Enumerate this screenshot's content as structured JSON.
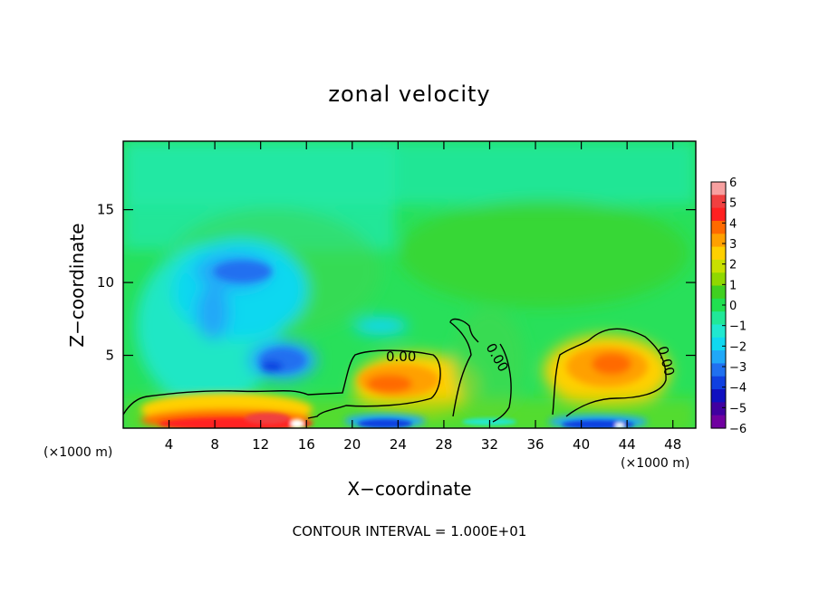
{
  "chart_data": {
    "type": "heatmap",
    "title": "zonal velocity",
    "xlabel": "X−coordinate",
    "ylabel": "Z−coordinate",
    "x_units": "(×1000 m)",
    "x_ticks": [
      4,
      8,
      12,
      16,
      20,
      24,
      28,
      32,
      36,
      40,
      44,
      48
    ],
    "y_ticks": [
      5,
      10,
      15
    ],
    "xlim": [
      0,
      50
    ],
    "ylim": [
      0,
      19.7
    ],
    "contour_interval_text": "CONTOUR INTERVAL = 1.000E+01",
    "contour_labels": [
      "0.00",
      "0.00",
      "0.00"
    ],
    "colorbar": {
      "ticks": [
        "6",
        "5",
        "4",
        "3",
        "2",
        "1",
        "0",
        "−1",
        "−2",
        "−3",
        "−4",
        "−5",
        "−6"
      ],
      "range": [
        -6,
        6
      ],
      "colors": [
        "#f7a0a0",
        "#f04040",
        "#ff2020",
        "#ff6a00",
        "#ffa000",
        "#ffd000",
        "#c8e000",
        "#90d800",
        "#40d020",
        "#20e050",
        "#20e898",
        "#20e8d0",
        "#10d8f0",
        "#20a8f8",
        "#2070f0",
        "#1040e0",
        "#1010c0",
        "#4000a0",
        "#7000a0"
      ]
    },
    "features": [
      {
        "name": "upper-left negative core",
        "x": 12,
        "z": 11,
        "value": -3
      },
      {
        "name": "mid-left negative core",
        "x": 14.5,
        "z": 4.5,
        "value": -3.5
      },
      {
        "name": "surface positive jet",
        "x": 10,
        "z": 0.8,
        "value": 4.5
      },
      {
        "name": "positive lobe",
        "x": 23,
        "z": 3.2,
        "value": 3
      },
      {
        "name": "positive lobe",
        "x": 43,
        "z": 4.2,
        "value": 3.5
      },
      {
        "name": "surface negative band",
        "x": 22,
        "z": 0.5,
        "value": -4.5
      },
      {
        "name": "surface negative band",
        "x": 43,
        "z": 0.5,
        "value": -5
      }
    ]
  }
}
